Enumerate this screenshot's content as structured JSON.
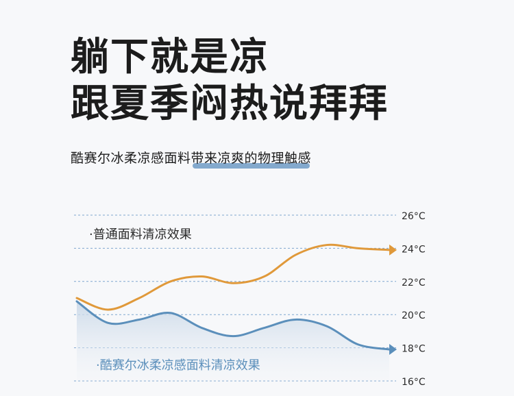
{
  "headline": {
    "line1": "躺下就是凉",
    "line2": "跟夏季闷热说拜拜"
  },
  "subheadline": {
    "prefix": "酷赛尔冰柔凉感面料",
    "highlight": "带来凉爽的物理触感"
  },
  "colors": {
    "orange_series": "#e0993a",
    "blue_series": "#5b8fbb",
    "highlight_bar": "#6f9bc4",
    "grid": "#7fa6cf"
  },
  "chart_data": {
    "type": "line",
    "ylim": [
      16,
      26
    ],
    "y_ticks": [
      16,
      18,
      20,
      22,
      24,
      26
    ],
    "y_tick_labels": [
      "16°C",
      "18°C",
      "20°C",
      "22°C",
      "24°C",
      "26°C"
    ],
    "grid": true,
    "series": [
      {
        "name": "·普通面料清凉效果",
        "color": "#e0993a",
        "values": [
          21.0,
          20.3,
          21.0,
          22.0,
          22.3,
          21.9,
          22.3,
          23.6,
          24.2,
          24.0,
          23.9
        ]
      },
      {
        "name": "·酷赛尔冰柔凉感面料清凉效果",
        "color": "#5b8fbb",
        "values": [
          20.8,
          19.5,
          19.7,
          20.1,
          19.2,
          18.7,
          19.2,
          19.7,
          19.3,
          18.2,
          17.9
        ]
      }
    ]
  }
}
